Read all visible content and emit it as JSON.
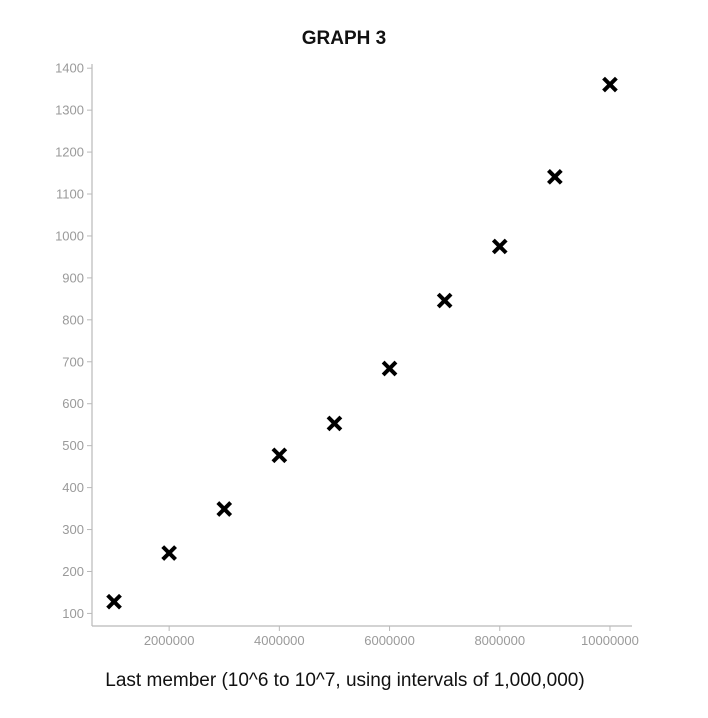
{
  "chart_data": {
    "type": "scatter",
    "title": "GRAPH 3",
    "xlabel": "Last member (10^6 to 10^7, using intervals of 1,000,000)",
    "ylabel": "",
    "x": [
      1000000,
      2000000,
      3000000,
      4000000,
      5000000,
      6000000,
      7000000,
      8000000,
      9000000,
      10000000
    ],
    "y": [
      128,
      244,
      349,
      477,
      553,
      684,
      846,
      975,
      1141,
      1361
    ],
    "xlim": [
      600000,
      10400000
    ],
    "ylim": [
      70,
      1410
    ],
    "xticks": [
      2000000,
      4000000,
      6000000,
      8000000,
      10000000
    ],
    "xtick_labels": [
      "2000000",
      "4000000",
      "6000000",
      "8000000",
      "10000000"
    ],
    "yticks": [
      100,
      200,
      300,
      400,
      500,
      600,
      700,
      800,
      900,
      1000,
      1100,
      1200,
      1300,
      1400
    ],
    "ytick_labels": [
      "100",
      "200",
      "300",
      "400",
      "500",
      "600",
      "700",
      "800",
      "900",
      "1000",
      "1100",
      "1200",
      "1300",
      "1400"
    ],
    "marker": "x",
    "marker_color": "#000000",
    "axis_color": "#b9b9b9",
    "tick_label_color": "#9a9a9a",
    "grid": false,
    "legend": "none"
  }
}
